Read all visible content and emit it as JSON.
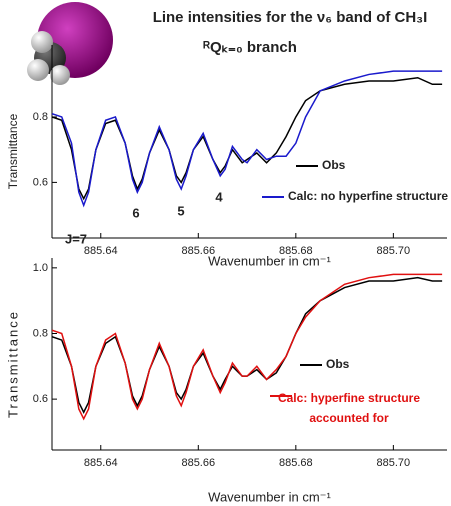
{
  "chart_data": [
    {
      "type": "line",
      "title": "Line intensities for the ν₆ band of CH₃I",
      "subtitle": "ᴿQₖ₌₀ branch",
      "annotations": [
        "J=7",
        "6",
        "5",
        "4"
      ],
      "x_label": "Wavenumber in cm⁻¹",
      "y_label": "Transmittance",
      "xlim": [
        885.63,
        885.711
      ],
      "ylim": [
        0.43,
        1.02
      ],
      "xticks": [
        885.64,
        885.66,
        885.68,
        {
          "value": 885.7,
          "label": "885.70"
        }
      ],
      "yticks": [
        0.6,
        0.8
      ],
      "legend": "lower right",
      "x": [
        885.63,
        885.632,
        885.634,
        885.6355,
        885.6365,
        885.6375,
        885.639,
        885.641,
        885.643,
        885.645,
        885.6465,
        885.6475,
        885.6485,
        885.65,
        885.652,
        885.654,
        885.6555,
        885.6565,
        885.6575,
        885.659,
        885.661,
        885.663,
        885.6645,
        885.6655,
        885.667,
        885.669,
        885.67,
        885.672,
        885.674,
        885.676,
        885.678,
        885.68,
        885.682,
        885.685,
        885.69,
        885.695,
        885.7,
        885.705,
        885.708,
        885.71
      ],
      "series": [
        {
          "name": "Obs",
          "color": "#000000",
          "values": [
            0.8,
            0.79,
            0.7,
            0.58,
            0.55,
            0.58,
            0.7,
            0.78,
            0.79,
            0.72,
            0.62,
            0.58,
            0.61,
            0.69,
            0.76,
            0.7,
            0.62,
            0.6,
            0.63,
            0.7,
            0.74,
            0.67,
            0.63,
            0.65,
            0.7,
            0.66,
            0.67,
            0.69,
            0.66,
            0.69,
            0.74,
            0.8,
            0.85,
            0.88,
            0.9,
            0.91,
            0.91,
            0.92,
            0.9,
            0.9
          ]
        },
        {
          "name": "Calc: no hyperfine structure",
          "color": "#1a1acc",
          "values": [
            0.81,
            0.8,
            0.72,
            0.57,
            0.53,
            0.57,
            0.7,
            0.79,
            0.8,
            0.72,
            0.61,
            0.57,
            0.6,
            0.69,
            0.77,
            0.7,
            0.61,
            0.58,
            0.62,
            0.7,
            0.75,
            0.67,
            0.62,
            0.64,
            0.71,
            0.67,
            0.66,
            0.7,
            0.67,
            0.68,
            0.68,
            0.72,
            0.8,
            0.88,
            0.91,
            0.93,
            0.94,
            0.94,
            0.94,
            0.94
          ]
        }
      ]
    },
    {
      "type": "line",
      "x_label": "Wavenumber in cm⁻¹",
      "y_label": "Transmittance",
      "xlim": [
        885.63,
        885.711
      ],
      "ylim": [
        0.445,
        1.03
      ],
      "xticks": [
        885.64,
        885.66,
        885.68,
        {
          "value": 885.7,
          "label": "885.70"
        }
      ],
      "yticks": [
        0.6,
        0.8,
        {
          "value": 1,
          "label": "1.0"
        }
      ],
      "legend": "lower right",
      "x": [
        885.63,
        885.632,
        885.634,
        885.6355,
        885.6365,
        885.6375,
        885.639,
        885.641,
        885.643,
        885.645,
        885.6465,
        885.6475,
        885.6485,
        885.65,
        885.652,
        885.654,
        885.6555,
        885.6565,
        885.6575,
        885.659,
        885.661,
        885.663,
        885.6645,
        885.6655,
        885.667,
        885.669,
        885.67,
        885.672,
        885.674,
        885.676,
        885.678,
        885.68,
        885.682,
        885.685,
        885.69,
        885.695,
        885.7,
        885.705,
        885.708,
        885.71
      ],
      "series": [
        {
          "name": "Obs",
          "color": "#000000",
          "values": [
            0.79,
            0.78,
            0.7,
            0.59,
            0.56,
            0.59,
            0.7,
            0.77,
            0.79,
            0.71,
            0.61,
            0.58,
            0.61,
            0.69,
            0.76,
            0.7,
            0.62,
            0.6,
            0.63,
            0.7,
            0.74,
            0.67,
            0.63,
            0.66,
            0.7,
            0.67,
            0.67,
            0.69,
            0.66,
            0.68,
            0.73,
            0.8,
            0.86,
            0.9,
            0.94,
            0.96,
            0.96,
            0.97,
            0.96,
            0.96
          ]
        },
        {
          "name": "Calc: hyperfine structure accounted for",
          "color": "#e01010",
          "values": [
            0.81,
            0.8,
            0.7,
            0.57,
            0.54,
            0.57,
            0.7,
            0.78,
            0.8,
            0.71,
            0.6,
            0.57,
            0.6,
            0.69,
            0.77,
            0.7,
            0.61,
            0.58,
            0.62,
            0.7,
            0.75,
            0.67,
            0.62,
            0.65,
            0.71,
            0.67,
            0.67,
            0.7,
            0.66,
            0.69,
            0.73,
            0.8,
            0.85,
            0.9,
            0.95,
            0.97,
            0.98,
            0.98,
            0.98,
            0.98
          ]
        }
      ]
    }
  ]
}
